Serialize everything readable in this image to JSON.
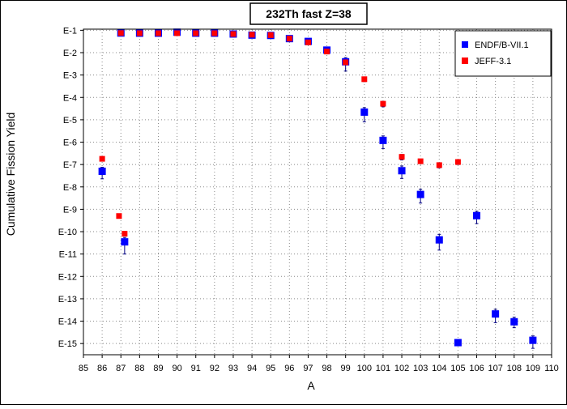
{
  "chart_data": {
    "type": "scatter",
    "title": "232Th fast Z=38",
    "xlabel": "A",
    "ylabel": "Cumulative Fission Yield",
    "xlim": [
      85,
      110
    ],
    "ylim_exponent": [
      -15.5,
      -0.95
    ],
    "y_scale": "log",
    "grid": true,
    "legend_position": "top-right",
    "x_ticks": [
      "85",
      "86",
      "87",
      "88",
      "89",
      "90",
      "91",
      "92",
      "93",
      "94",
      "95",
      "96",
      "97",
      "98",
      "99",
      "100",
      "101",
      "102",
      "103",
      "104",
      "105",
      "106",
      "107",
      "108",
      "109",
      "110"
    ],
    "y_ticks": [
      {
        "label": "E-1",
        "exp": -1
      },
      {
        "label": "E-2",
        "exp": -2
      },
      {
        "label": "E-3",
        "exp": -3
      },
      {
        "label": "E-4",
        "exp": -4
      },
      {
        "label": "E-5",
        "exp": -5
      },
      {
        "label": "E-6",
        "exp": -6
      },
      {
        "label": "E-7",
        "exp": -7
      },
      {
        "label": "E-8",
        "exp": -8
      },
      {
        "label": "E-9",
        "exp": -9
      },
      {
        "label": "E-10",
        "exp": -10
      },
      {
        "label": "E-11",
        "exp": -11
      },
      {
        "label": "E-12",
        "exp": -12
      },
      {
        "label": "E-13",
        "exp": -13
      },
      {
        "label": "E-14",
        "exp": -14
      },
      {
        "label": "E-15",
        "exp": -15
      }
    ],
    "series": [
      {
        "name": "ENDF/B-VII.1",
        "color": "#0000ff",
        "marker": "square",
        "points": [
          {
            "a": 86,
            "y": 5e-08,
            "lo": 2.3e-08,
            "hi": 7.5e-08
          },
          {
            "a": 87.2,
            "y": 3.5e-11,
            "lo": 1e-11,
            "hi": 5.5e-11
          },
          {
            "a": 87,
            "y": 0.0752
          },
          {
            "a": 88,
            "y": 0.0741
          },
          {
            "a": 89,
            "y": 0.0741
          },
          {
            "a": 90,
            "y": 0.0821
          },
          {
            "a": 91,
            "y": 0.0741
          },
          {
            "a": 92,
            "y": 0.0741
          },
          {
            "a": 93,
            "y": 0.0681
          },
          {
            "a": 94,
            "y": 0.0608
          },
          {
            "a": 95,
            "y": 0.0588
          },
          {
            "a": 96,
            "y": 0.0424
          },
          {
            "a": 97,
            "y": 0.0318
          },
          {
            "a": 98,
            "y": 0.013,
            "lo": 0.0102,
            "hi": 0.0158
          },
          {
            "a": 99,
            "y": 0.0039,
            "lo": 0.0015,
            "hi": 0.006
          },
          {
            "a": 100,
            "y": 2.2e-05,
            "lo": 8.1e-06,
            "hi": 3.5e-05
          },
          {
            "a": 101,
            "y": 1.2e-06,
            "lo": 5.2e-07,
            "hi": 1.9e-06
          },
          {
            "a": 102,
            "y": 5.3e-08,
            "lo": 2.4e-08,
            "hi": 8.6e-08
          },
          {
            "a": 103,
            "y": 4.6e-09,
            "lo": 1.9e-09,
            "hi": 7.9e-09
          },
          {
            "a": 104,
            "y": 4.3e-11,
            "lo": 1.5e-11,
            "hi": 7.6e-11
          },
          {
            "a": 105,
            "y": 1.1e-15,
            "lo": 8.6e-16,
            "hi": 1.4e-15
          },
          {
            "a": 106,
            "y": 5.2e-10,
            "lo": 2.3e-10,
            "hi": 8.1e-10
          },
          {
            "a": 107,
            "y": 2.1e-14,
            "lo": 8.6e-15,
            "hi": 3.4e-14
          },
          {
            "a": 108,
            "y": 9.4e-15,
            "lo": 5.1e-15,
            "hi": 1.5e-14
          },
          {
            "a": 109,
            "y": 1.4e-15,
            "lo": 6.1e-16,
            "hi": 2.2e-15
          }
        ]
      },
      {
        "name": "JEFF-3.1",
        "color": "#ff0000",
        "marker": "square",
        "points": [
          {
            "a": 86,
            "y": 1.8e-07,
            "lo": 1.5e-07,
            "hi": 2.1e-07
          },
          {
            "a": 86.9,
            "y": 5e-10
          },
          {
            "a": 87.2,
            "y": 8.1e-11,
            "lo": 6.4e-11,
            "hi": 9.8e-11
          },
          {
            "a": 87,
            "y": 0.0752
          },
          {
            "a": 88,
            "y": 0.0741
          },
          {
            "a": 89,
            "y": 0.0741
          },
          {
            "a": 90,
            "y": 0.0741
          },
          {
            "a": 91,
            "y": 0.0741
          },
          {
            "a": 92,
            "y": 0.0741
          },
          {
            "a": 93,
            "y": 0.0681
          },
          {
            "a": 94,
            "y": 0.0636
          },
          {
            "a": 95,
            "y": 0.0608
          },
          {
            "a": 96,
            "y": 0.0424
          },
          {
            "a": 97,
            "y": 0.0288
          },
          {
            "a": 98,
            "y": 0.0112
          },
          {
            "a": 99,
            "y": 0.0037
          },
          {
            "a": 100,
            "y": 0.00065,
            "lo": 0.00051,
            "hi": 0.0008
          },
          {
            "a": 101,
            "y": 5.2e-05,
            "lo": 3.8e-05,
            "hi": 6.6e-05
          },
          {
            "a": 102,
            "y": 2.2e-07,
            "lo": 1.6e-07,
            "hi": 2.8e-07
          },
          {
            "a": 103,
            "y": 1.4e-07,
            "lo": 1.1e-07,
            "hi": 1.7e-07
          },
          {
            "a": 104,
            "y": 9.4e-08,
            "lo": 7.1e-08,
            "hi": 1.2e-07
          },
          {
            "a": 105,
            "y": 1.3e-07,
            "lo": 1e-07,
            "hi": 1.6e-07
          }
        ]
      }
    ]
  }
}
